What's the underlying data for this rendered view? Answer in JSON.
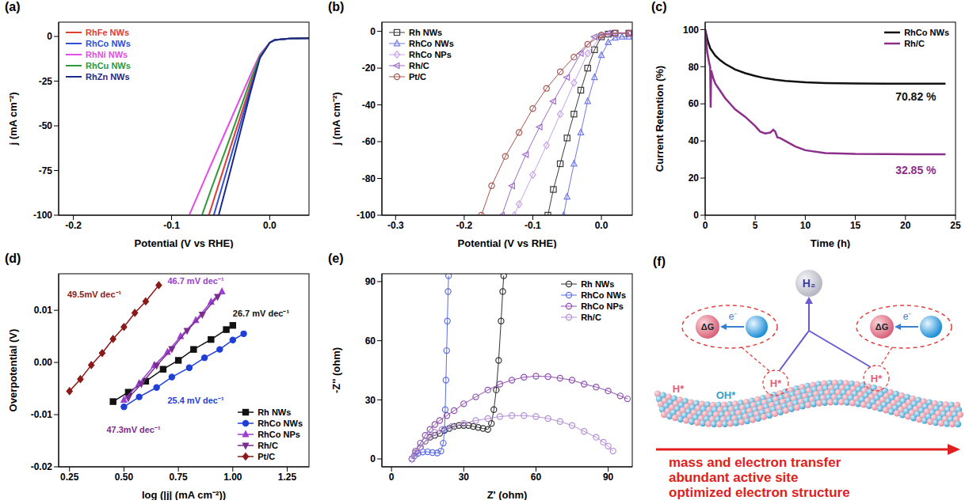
{
  "chart_data": [
    {
      "panel": "(a)",
      "type": "line",
      "x_label": "Potential (V vs RHE)",
      "y_label": "j (mA cm⁻²)",
      "xlim": [
        -0.215,
        0.04
      ],
      "ylim": [
        -100,
        8
      ],
      "xticks": [
        -0.2,
        -0.1,
        {
          "value": 0,
          "label": "0.0"
        }
      ],
      "yticks": [
        -100,
        -75,
        -50,
        -25,
        0
      ],
      "legend": "top-left",
      "series": [
        {
          "name": "RhFe NWs",
          "color": "#e03c31",
          "x": [
            0.04,
            0.02,
            0.005,
            0,
            -0.01,
            -0.02,
            -0.04,
            -0.062
          ],
          "values": [
            -1,
            -1.2,
            -2,
            -3.5,
            -11,
            -28,
            -62,
            -100
          ]
        },
        {
          "name": "RhCo NWs",
          "color": "#2f4fd8",
          "x": [
            0.04,
            0.02,
            0.005,
            0,
            -0.01,
            -0.02,
            -0.04,
            -0.057
          ],
          "values": [
            -1,
            -1.2,
            -2,
            -3.5,
            -12,
            -30,
            -68,
            -100
          ]
        },
        {
          "name": "RhNi NWs",
          "color": "#e64ce6",
          "x": [
            0.04,
            0.02,
            0.005,
            0,
            -0.01,
            -0.02,
            -0.04,
            -0.06,
            -0.082
          ],
          "values": [
            -1,
            -1.2,
            -2,
            -3.5,
            -10,
            -22,
            -47,
            -72,
            -100
          ]
        },
        {
          "name": "RhCu NWs",
          "color": "#2e9a3a",
          "x": [
            0.04,
            0.02,
            0.005,
            0,
            -0.01,
            -0.02,
            -0.04,
            -0.06,
            -0.069
          ],
          "values": [
            -1,
            -1.2,
            -2,
            -3.5,
            -11,
            -25,
            -56,
            -86,
            -100
          ]
        },
        {
          "name": "RhZn NWs",
          "color": "#1c2a8c",
          "x": [
            0.04,
            0.02,
            0.005,
            0,
            -0.01,
            -0.02,
            -0.04,
            -0.052
          ],
          "values": [
            -1,
            -1.2,
            -2,
            -3.5,
            -12,
            -32,
            -75,
            -100
          ]
        }
      ]
    },
    {
      "panel": "(b)",
      "type": "scatter",
      "x_label": "Potential (V vs RHE)",
      "y_label": "j (mA cm⁻²)",
      "xlim": [
        -0.32,
        0.045
      ],
      "ylim": [
        -100,
        5
      ],
      "xticks": [
        -0.3,
        -0.2,
        -0.1,
        {
          "value": 0,
          "label": "0.0"
        }
      ],
      "yticks": [
        -100,
        -80,
        -60,
        -40,
        -20,
        0
      ],
      "legend": "top-left",
      "series": [
        {
          "name": "Rh NWs",
          "color": "#3a3a3a",
          "marker": "square-open",
          "line_style": "solid",
          "x": [
            0.04,
            0.02,
            0.01,
            0,
            -0.01,
            -0.02,
            -0.03,
            -0.04,
            -0.05,
            -0.06,
            -0.07,
            -0.078
          ],
          "values": [
            -1,
            -1,
            -1.5,
            -3,
            -10,
            -20,
            -32,
            -45,
            -58,
            -72,
            -86,
            -100
          ]
        },
        {
          "name": "RhCo NWs",
          "color": "#6f78e6",
          "marker": "triangle-open",
          "line_style": "solid",
          "x": [
            0.04,
            0.03,
            0.02,
            0.01,
            0,
            -0.01,
            -0.02,
            -0.03,
            -0.04,
            -0.05,
            -0.055
          ],
          "values": [
            -3,
            -3,
            -3.5,
            -6,
            -13,
            -25,
            -38,
            -55,
            -72,
            -90,
            -100
          ]
        },
        {
          "name": "RhCo NPs",
          "color": "#c7a2ea",
          "marker": "diamond-open",
          "line_style": "solid",
          "x": [
            0.04,
            0.02,
            0,
            -0.02,
            -0.04,
            -0.06,
            -0.08,
            -0.1,
            -0.12,
            -0.127
          ],
          "values": [
            -1,
            -1,
            -2.5,
            -12,
            -28,
            -45,
            -62,
            -78,
            -94,
            -100
          ]
        },
        {
          "name": "Rh/C",
          "color": "#9d6cc9",
          "marker": "triangle-left-open",
          "line_style": "solid",
          "x": [
            0.04,
            0.01,
            -0.01,
            -0.03,
            -0.05,
            -0.07,
            -0.09,
            -0.11,
            -0.13,
            -0.145
          ],
          "values": [
            -1,
            -1,
            -3,
            -12,
            -25,
            -38,
            -52,
            -67,
            -84,
            -100
          ]
        },
        {
          "name": "Pt/C",
          "color": "#a5564e",
          "marker": "circle-open",
          "line_style": "solid",
          "x": [
            0.04,
            0.02,
            0,
            -0.02,
            -0.04,
            -0.06,
            -0.08,
            -0.1,
            -0.12,
            -0.14,
            -0.16,
            -0.175
          ],
          "values": [
            -1,
            -1,
            -2,
            -7,
            -14,
            -22,
            -31,
            -42,
            -55,
            -68,
            -84,
            -100
          ]
        }
      ]
    },
    {
      "panel": "(c)",
      "type": "line",
      "x_label": "Time (h)",
      "y_label": "Current Retention (%)",
      "xlim": [
        0,
        25
      ],
      "ylim": [
        0,
        104
      ],
      "xticks": [
        0,
        5,
        10,
        15,
        20,
        25
      ],
      "yticks": [
        0,
        20,
        40,
        60,
        80,
        100
      ],
      "legend": "top-right",
      "series": [
        {
          "name": "RhCo NWs",
          "color": "#111111",
          "x": [
            0,
            0.25,
            0.5,
            1,
            1.5,
            2,
            3,
            4,
            5,
            6,
            7,
            8,
            10,
            12,
            15,
            18,
            21,
            24
          ],
          "values": [
            100,
            94,
            90,
            86,
            83.5,
            81.5,
            78.5,
            76.5,
            75,
            73.8,
            73,
            72.4,
            71.6,
            71.2,
            70.95,
            70.88,
            70.85,
            70.82
          ]
        },
        {
          "name": "Rh/C",
          "color": "#8b2f8b",
          "x": [
            0,
            0.2,
            0.4,
            0.5,
            0.55,
            0.6,
            0.8,
            1,
            1.5,
            2,
            2.5,
            3,
            4,
            5,
            5.5,
            6,
            6.5,
            6.8,
            7,
            7.2,
            7.5,
            8,
            9,
            10,
            12,
            15,
            18,
            21,
            24
          ],
          "values": [
            100,
            88,
            82,
            80,
            58,
            78,
            74,
            71,
            67,
            63,
            60,
            57,
            53,
            48,
            45,
            44,
            44.5,
            46,
            45,
            42,
            41.5,
            40,
            37,
            35,
            33.5,
            33,
            32.9,
            32.87,
            32.85
          ]
        }
      ],
      "annotations": [
        {
          "text": "70.82 %",
          "x": 19,
          "y": 62,
          "color": "#111111"
        },
        {
          "text": "32.85 %",
          "x": 19,
          "y": 22,
          "color": "#8b2f8b"
        }
      ]
    },
    {
      "panel": "(d)",
      "type": "scatter",
      "x_label": "log (|j| (mA cm⁻²))",
      "y_label": "Overpotential (V)",
      "xlim": [
        0.2,
        1.35
      ],
      "ylim": [
        -0.02,
        0.017
      ],
      "xticks": [
        0.25,
        {
          "value": 0.5,
          "label": "0.50"
        },
        0.75,
        {
          "value": 1,
          "label": "1.00"
        },
        1.25
      ],
      "yticks": [
        -0.02,
        -0.01,
        {
          "value": 0,
          "label": "0.00"
        },
        0.01
      ],
      "legend": "bottom-right",
      "series": [
        {
          "name": "Rh NWs",
          "color": "#111111",
          "marker": "square",
          "line_style": "solid",
          "x": [
            0.45,
            0.52,
            0.6,
            0.68,
            0.75,
            0.82,
            0.9,
            0.97,
            1.0
          ],
          "values": [
            -0.0075,
            -0.0057,
            -0.0036,
            -0.0013,
            0.0004,
            0.0025,
            0.0044,
            0.0063,
            0.0071
          ]
        },
        {
          "name": "RhCo NWs",
          "color": "#1f3fd6",
          "marker": "circle",
          "line_style": "solid",
          "x": [
            0.5,
            0.57,
            0.65,
            0.72,
            0.8,
            0.87,
            0.94,
            1.0,
            1.05
          ],
          "values": [
            -0.0085,
            -0.0066,
            -0.0048,
            -0.0028,
            -0.001,
            0.0009,
            0.0025,
            0.0043,
            0.0055
          ]
        },
        {
          "name": "RhCo NPs",
          "color": "#9b3fd1",
          "marker": "triangle",
          "line_style": "solid",
          "x": [
            0.5,
            0.57,
            0.64,
            0.7,
            0.76,
            0.83,
            0.9,
            0.95
          ],
          "values": [
            -0.0072,
            -0.004,
            -0.0005,
            0.002,
            0.005,
            0.0081,
            0.0116,
            0.0136
          ]
        },
        {
          "name": "Rh/C",
          "color": "#7a2d8e",
          "marker": "triangle-down",
          "line_style": "solid",
          "x": [
            0.52,
            0.58,
            0.65,
            0.72,
            0.79,
            0.86,
            0.93
          ],
          "values": [
            -0.0068,
            -0.0041,
            -0.0006,
            0.0026,
            0.0061,
            0.0092,
            0.0126
          ]
        },
        {
          "name": "Pt/C",
          "color": "#8b1a1a",
          "marker": "diamond",
          "line_style": "solid",
          "x": [
            0.25,
            0.3,
            0.35,
            0.4,
            0.45,
            0.5,
            0.55,
            0.6,
            0.66
          ],
          "values": [
            -0.0055,
            -0.0032,
            -0.0005,
            0.0018,
            0.0045,
            0.0068,
            0.0095,
            0.0117,
            0.0148
          ]
        }
      ],
      "annotations": [
        {
          "text": "49.5mV dec⁻¹",
          "x": 0.24,
          "y": 0.0125,
          "color": "#8b1a1a"
        },
        {
          "text": "47.3mV dec⁻¹",
          "x": 0.42,
          "y": -0.0135,
          "color": "#7a2d8e"
        },
        {
          "text": "46.7 mV dec⁻¹",
          "x": 0.7,
          "y": 0.015,
          "color": "#9b3fd1"
        },
        {
          "text": "26.7 mV dec⁻¹",
          "x": 1.0,
          "y": 0.0088,
          "color": "#111111"
        },
        {
          "text": "25.4 mV dec⁻¹",
          "x": 0.7,
          "y": -0.0078,
          "color": "#1f3fd6"
        }
      ]
    },
    {
      "panel": "(e)",
      "type": "scatter",
      "x_label": "Z' (ohm)",
      "y_label": "-Z'' (ohm)",
      "xlim": [
        -4,
        100
      ],
      "ylim": [
        -4,
        94
      ],
      "xticks": [
        0,
        30,
        60,
        90
      ],
      "yticks": [
        0,
        30,
        60,
        90
      ],
      "legend": "top-right",
      "series": [
        {
          "name": "Rh NWs",
          "color": "#333333",
          "marker": "circle-open",
          "line_style": "solid",
          "x": [
            8.5,
            10,
            12,
            14,
            16,
            18,
            20,
            22,
            24,
            26,
            28,
            30,
            32,
            34,
            36,
            38,
            40,
            41.5,
            42.5,
            43.5,
            44.5,
            45.5,
            46.2,
            46.6
          ],
          "values": [
            0,
            3,
            6,
            9,
            11,
            12,
            13,
            14.5,
            15.5,
            16.5,
            17,
            17,
            17,
            16.5,
            16,
            15.5,
            15,
            18,
            25,
            35,
            50,
            70,
            85,
            93
          ]
        },
        {
          "name": "RhCo NWs",
          "color": "#5a6de0",
          "marker": "circle-open",
          "line_style": "solid",
          "x": [
            8.5,
            9.5,
            11,
            13,
            15,
            17,
            19,
            20.5,
            21.5,
            22,
            22.3,
            22.6,
            22.9,
            23.2,
            23.5,
            23.7
          ],
          "values": [
            0,
            1.5,
            2.8,
            3.5,
            3.6,
            3.2,
            3,
            4,
            8,
            15,
            25,
            40,
            55,
            70,
            85,
            93
          ]
        },
        {
          "name": "RhCo NPs",
          "color": "#8e4fb0",
          "marker": "circle-open",
          "line_style": "solid",
          "x": [
            8.5,
            10,
            12,
            14,
            16,
            18,
            20,
            23,
            26,
            30,
            35,
            40,
            45,
            50,
            55,
            60,
            65,
            70,
            75,
            80,
            85,
            90,
            95,
            98
          ],
          "values": [
            0,
            4,
            8,
            12,
            15,
            17.5,
            19.5,
            22,
            24.5,
            28,
            31.5,
            35,
            38,
            40,
            41.5,
            42,
            41.8,
            41,
            40,
            38,
            36.5,
            34.5,
            32,
            30.5
          ]
        },
        {
          "name": "Rh/C",
          "color": "#b58fd6",
          "marker": "circle-open",
          "line_style": "solid",
          "x": [
            8.5,
            10,
            12,
            14,
            16,
            18,
            21,
            25,
            30,
            35,
            40,
            45,
            50,
            55,
            60,
            65,
            70,
            75,
            80,
            85,
            88,
            90,
            92
          ],
          "values": [
            0,
            3,
            6,
            9,
            11.5,
            13.5,
            15,
            16.5,
            18,
            19.5,
            20.5,
            21.5,
            22,
            22,
            21.5,
            20.5,
            19,
            17,
            14,
            11,
            8.5,
            6.5,
            4
          ]
        }
      ]
    }
  ],
  "diagram": {
    "panel": "(f)",
    "product": "H₂",
    "free_energy": "ΔG",
    "electron": "e⁻",
    "adsorbed_h": "H*",
    "adsorbed_oh": "OH*",
    "captions": [
      "mass and electron transfer",
      "abundant active site",
      "optimized electron structure"
    ]
  }
}
